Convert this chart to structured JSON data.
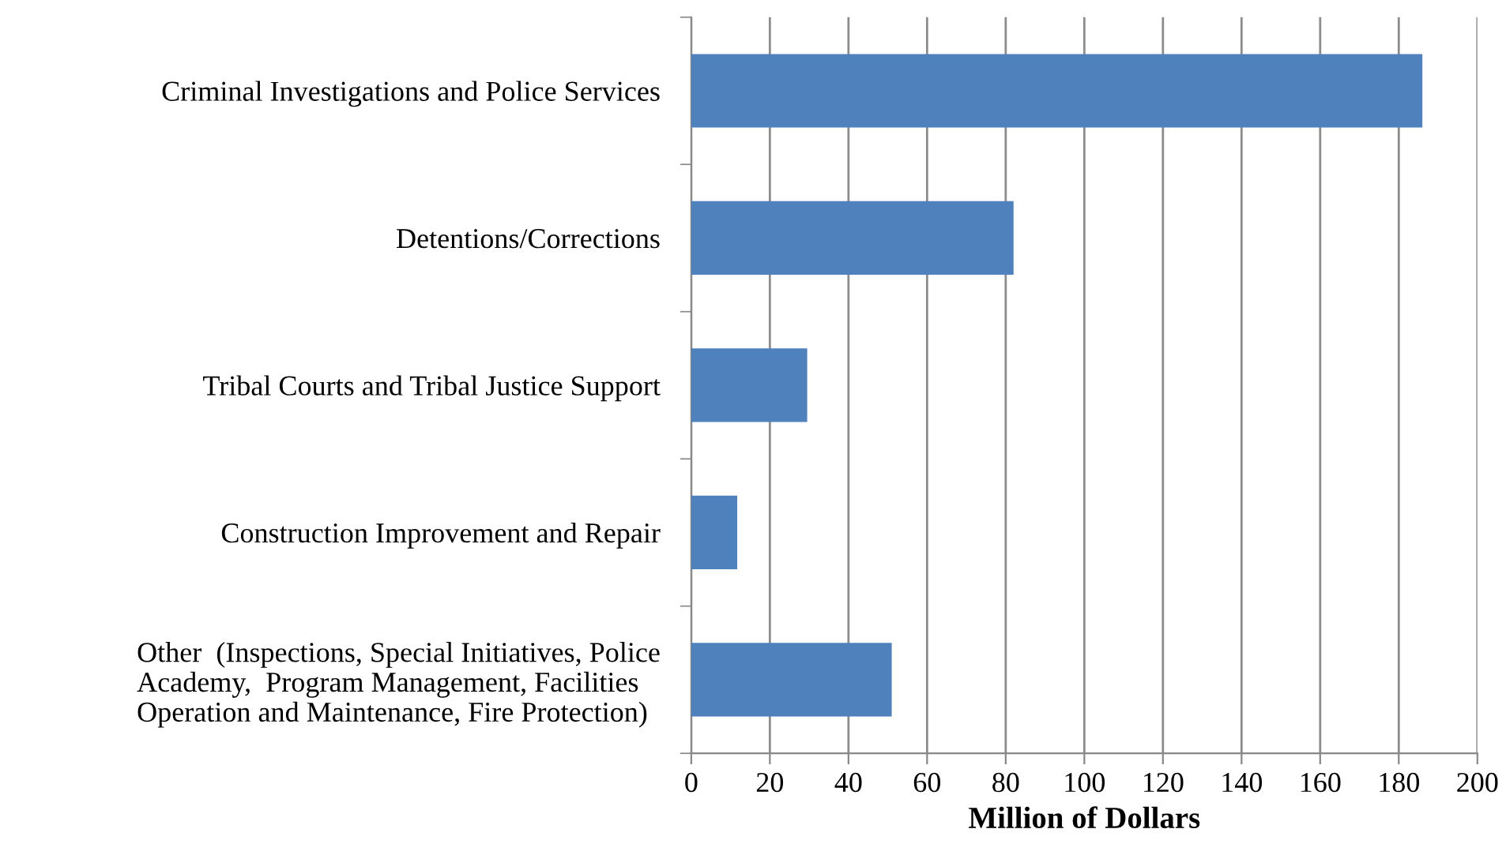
{
  "chart_data": {
    "type": "bar",
    "orientation": "horizontal",
    "categories": [
      "Criminal Investigations and Police Services",
      "Detentions/Corrections",
      "Tribal Courts and Tribal Justice Support",
      "Construction Improvement and Repair",
      "Other  (Inspections, Special Initiatives, Police\nAcademy,  Program Management, Facilities\nOperation and Maintenance, Fire Protection)"
    ],
    "values": [
      186,
      82,
      29.5,
      11.7,
      51
    ],
    "color": "#4f81bd",
    "xlabel": "Million of Dollars",
    "xlim": [
      0,
      200
    ],
    "xticks": [
      0,
      20,
      40,
      60,
      80,
      100,
      120,
      140,
      160,
      180,
      200
    ],
    "grid": "x"
  }
}
